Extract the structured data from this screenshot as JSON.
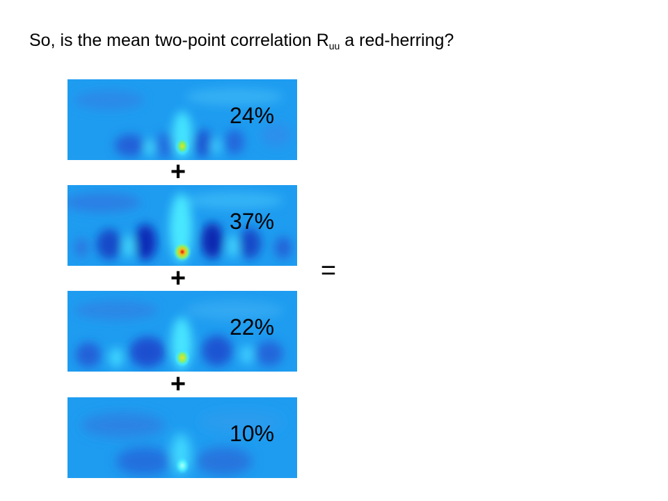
{
  "title": {
    "prefix": "So, is the mean two-point correlation R",
    "subscript": "uu",
    "suffix": " a red-herring?"
  },
  "panels": [
    {
      "percent": "24%",
      "peak": "yellow-green"
    },
    {
      "percent": "37%",
      "peak": "red"
    },
    {
      "percent": "22%",
      "peak": "yellow-green"
    },
    {
      "percent": "10%",
      "peak": "light-cyan"
    }
  ],
  "operators": {
    "plus": "+",
    "equals": "="
  },
  "colors": {
    "field_background": "#1e9cf0",
    "dark_blue": "#0a28b8",
    "cyan": "#30f0ff",
    "yellow": "#e8f020",
    "red": "#e01010"
  }
}
